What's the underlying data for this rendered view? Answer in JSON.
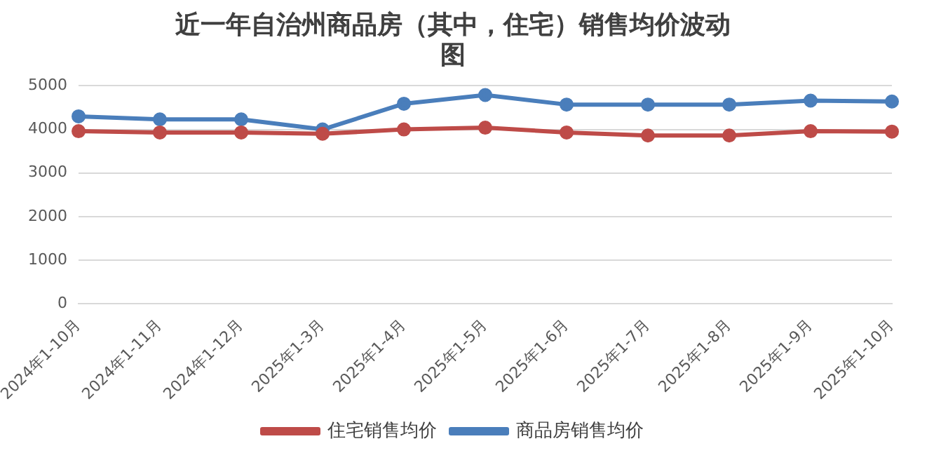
{
  "chart_data": {
    "type": "line",
    "title": "近一年自治州商品房（其中，住宅）销售均价波动图",
    "categories": [
      "2024年1-10月",
      "2024年1-11月",
      "2024年1-12月",
      "2025年1-3月",
      "2025年1-4月",
      "2025年1-5月",
      "2025年1-6月",
      "2025年1-7月",
      "2025年1-8月",
      "2025年1-9月",
      "2025年1-10月"
    ],
    "series": [
      {
        "name": "商品房销售均价",
        "color": "#4a7ebb",
        "values": [
          4300,
          4230,
          4230,
          4000,
          4590,
          4790,
          4570,
          4570,
          4570,
          4660,
          4640
        ]
      },
      {
        "name": "住宅销售均价",
        "color": "#be4b48",
        "values": [
          3960,
          3930,
          3930,
          3900,
          4000,
          4040,
          3930,
          3860,
          3860,
          3960,
          3950
        ]
      }
    ],
    "ylim": [
      0,
      5000
    ],
    "yticks": [
      0,
      1000,
      2000,
      3000,
      4000,
      5000
    ],
    "grid": "y",
    "legend": "bottom",
    "marker": "circle",
    "line_style": "solid"
  }
}
